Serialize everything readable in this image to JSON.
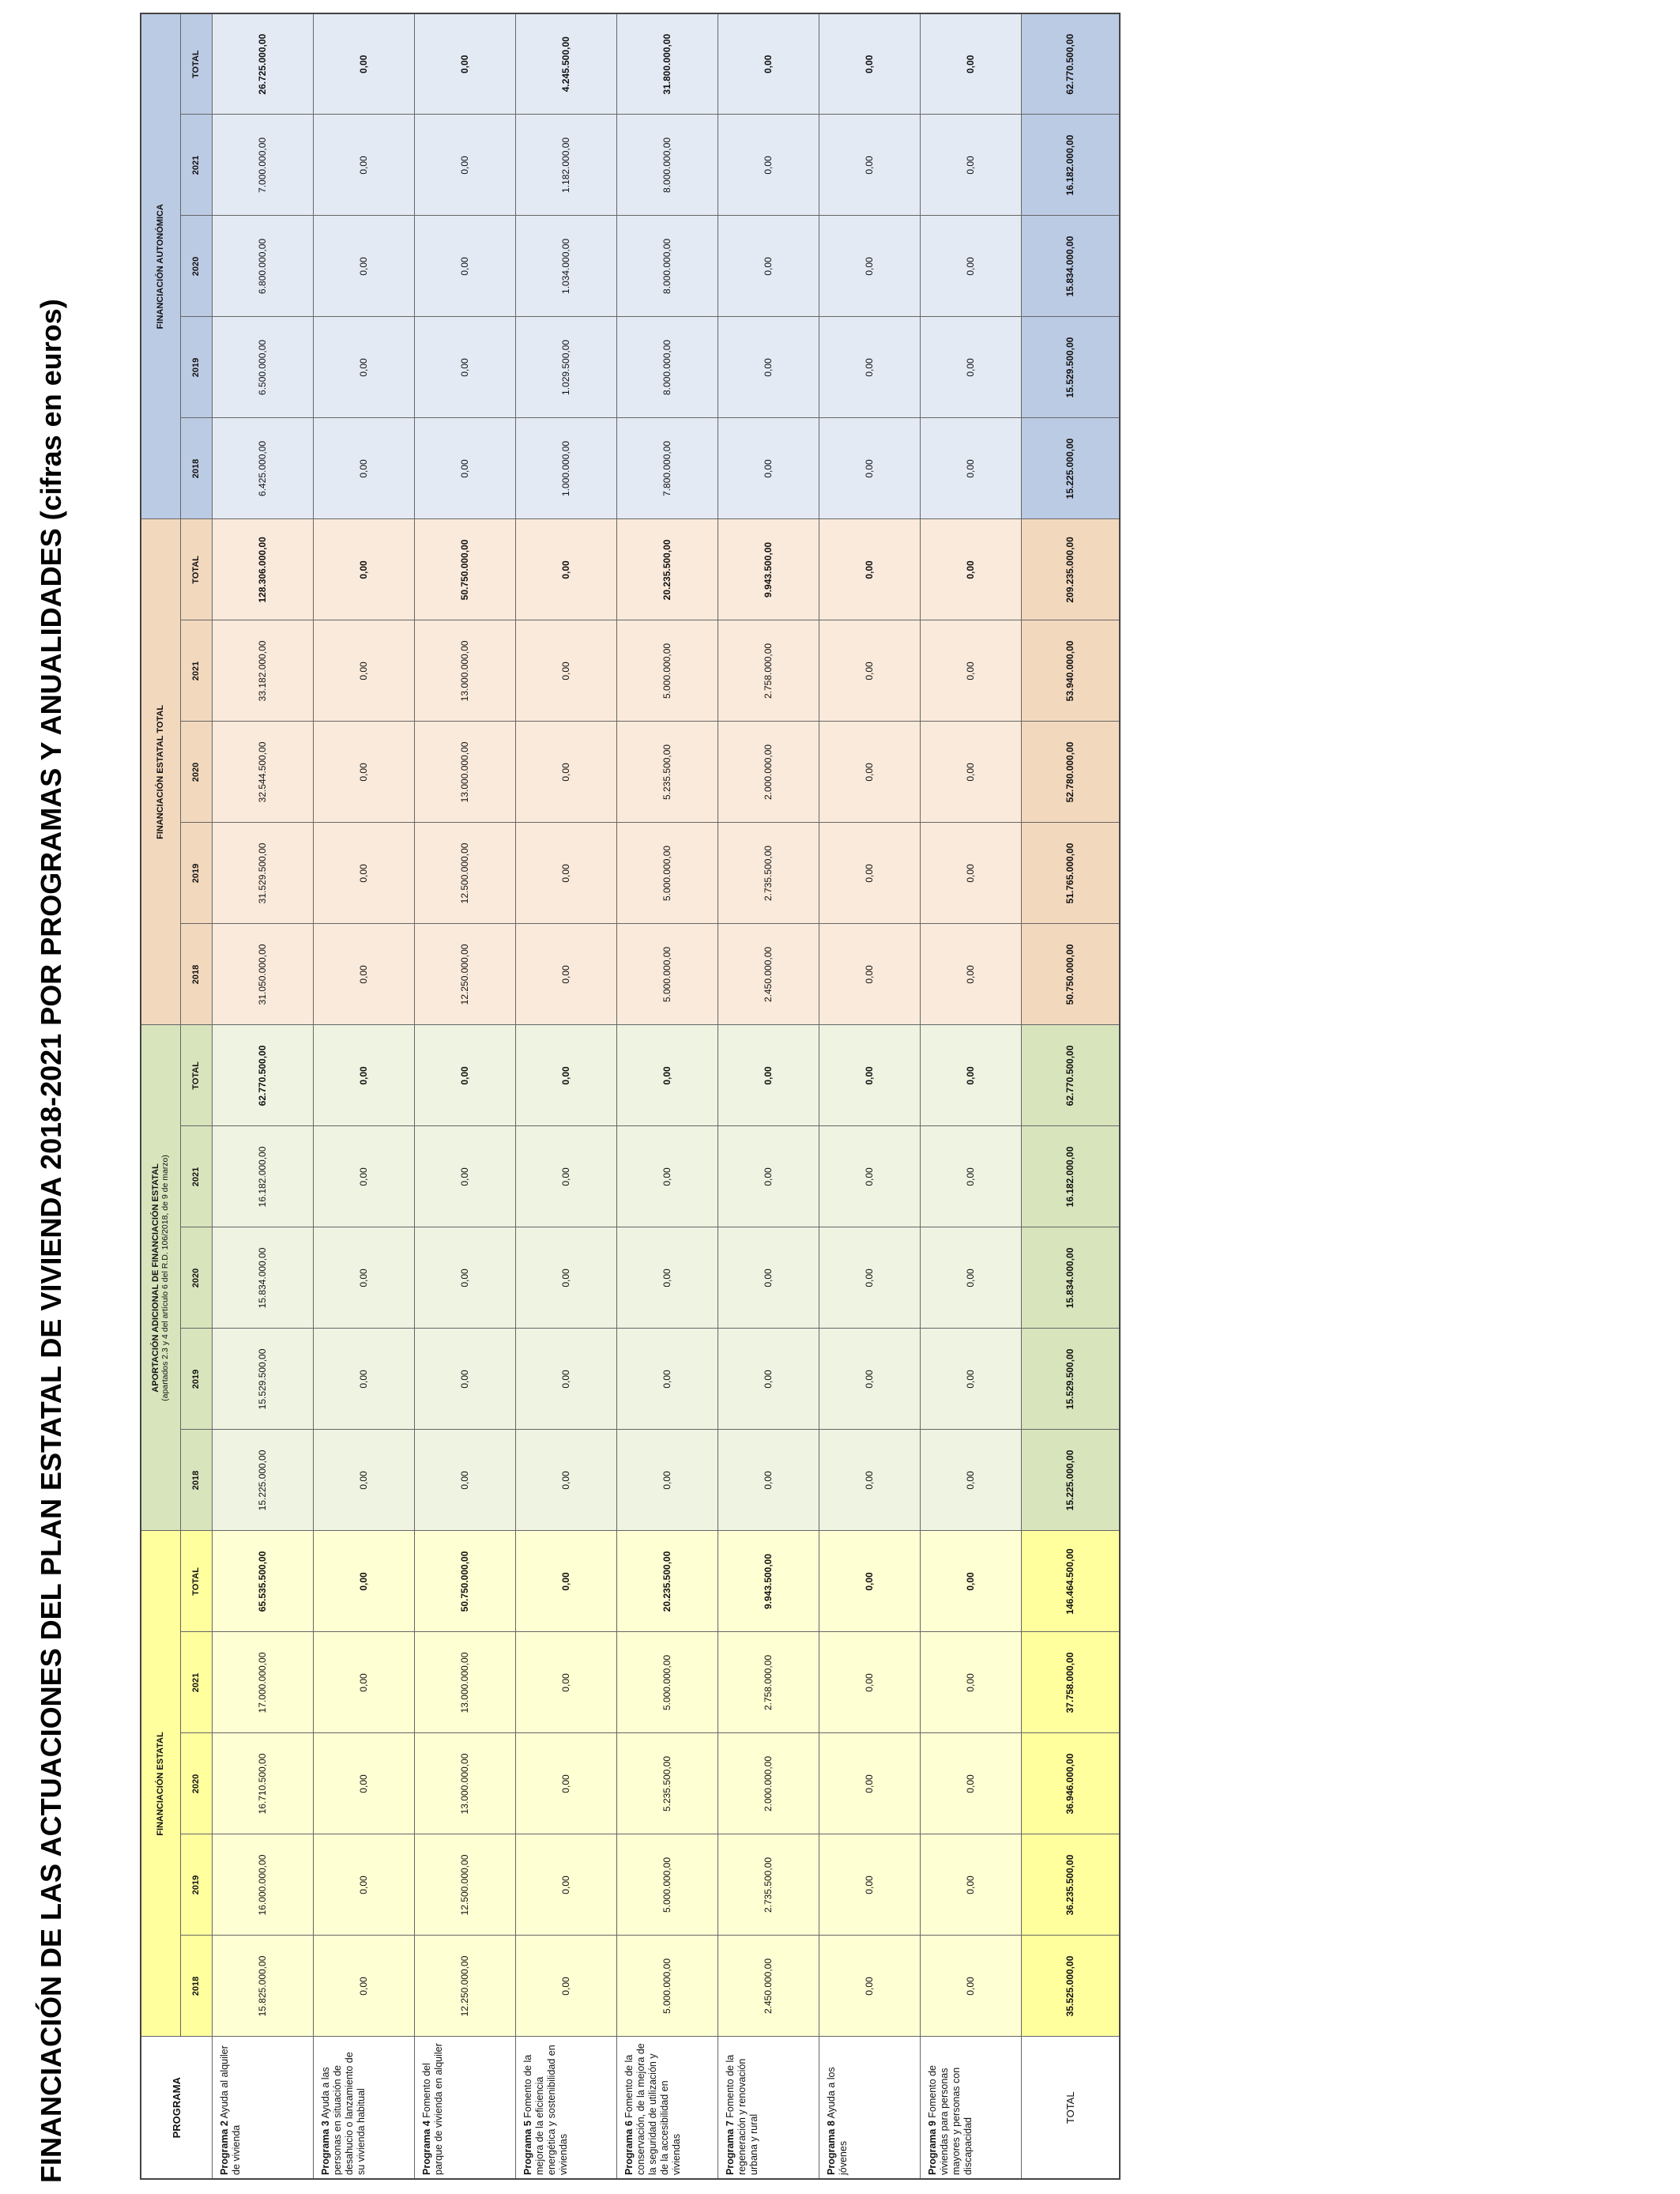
{
  "title": "FINANCIACIÓN DE LAS ACTUACIONES DEL PLAN ESTATAL DE VIVIENDA 2018-2021 POR PROGRAMAS Y ANUALIDADES (cifras en euros)",
  "table": {
    "header": "PROGRAMA",
    "groups": [
      {
        "title": "FINANCIACIÓN ESTATAL",
        "columns": [
          "2018",
          "2019",
          "2020",
          "2021",
          "TOTAL"
        ]
      },
      {
        "title": "APORTACIÓN ADICIONAL DE FINANCIACIÓN ESTATAL",
        "subtitle": "(apartados 2.3 y 4 del artículo 6 del R.D. 106/2018, de 9 de marzo)",
        "columns": [
          "2018",
          "2019",
          "2020",
          "2021",
          "TOTAL"
        ]
      },
      {
        "title": "FINANCIACIÓN ESTATAL TOTAL",
        "columns": [
          "2018",
          "2019",
          "2020",
          "2021",
          "TOTAL"
        ]
      },
      {
        "title": "FINANCIACIÓN AUTONÓMICA",
        "columns": [
          "2018",
          "2019",
          "2020",
          "2021",
          "TOTAL"
        ]
      }
    ],
    "rows": [
      {
        "program_number": "Programa 2",
        "program_name": "Ayuda al alquiler de vivienda",
        "cells": [
          "15.825.000,00",
          "16.000.000,00",
          "16.710.500,00",
          "17.000.000,00",
          "65.535.500,00",
          "15.225.000,00",
          "15.529.500,00",
          "15.834.000,00",
          "16.182.000,00",
          "62.770.500,00",
          "31.050.000,00",
          "31.529.500,00",
          "32.544.500,00",
          "33.182.000,00",
          "128.306.000,00",
          "6.425.000,00",
          "6.500.000,00",
          "6.800.000,00",
          "7.000.000,00",
          "26.725.000,00"
        ]
      },
      {
        "program_number": "Programa 3",
        "program_name": "Ayuda a las personas en situación de desahucio o lanzamiento de su vivienda habitual",
        "cells": [
          "0,00",
          "0,00",
          "0,00",
          "0,00",
          "0,00",
          "0,00",
          "0,00",
          "0,00",
          "0,00",
          "0,00",
          "0,00",
          "0,00",
          "0,00",
          "0,00",
          "0,00",
          "0,00",
          "0,00",
          "0,00",
          "0,00",
          "0,00"
        ]
      },
      {
        "program_number": "Programa 4",
        "program_name": "Fomento del parque de vivienda en alquiler",
        "cells": [
          "12.250.000,00",
          "12.500.000,00",
          "13.000.000,00",
          "13.000.000,00",
          "50.750.000,00",
          "0,00",
          "0,00",
          "0,00",
          "0,00",
          "0,00",
          "12.250.000,00",
          "12.500.000,00",
          "13.000.000,00",
          "13.000.000,00",
          "50.750.000,00",
          "0,00",
          "0,00",
          "0,00",
          "0,00",
          "0,00"
        ]
      },
      {
        "program_number": "Programa 5",
        "program_name": "Fomento de la mejora de la eficiencia energética y sostenibilidad en viviendas",
        "cells": [
          "0,00",
          "0,00",
          "0,00",
          "0,00",
          "0,00",
          "0,00",
          "0,00",
          "0,00",
          "0,00",
          "0,00",
          "0,00",
          "0,00",
          "0,00",
          "0,00",
          "0,00",
          "1.000.000,00",
          "1.029.500,00",
          "1.034.000,00",
          "1.182.000,00",
          "4.245.500,00"
        ]
      },
      {
        "program_number": "Programa 6",
        "program_name": "Fomento de la conservación, de la mejora de la seguridad de utilización y de la accesibilidad en viviendas",
        "cells": [
          "5.000.000,00",
          "5.000.000,00",
          "5.235.500,00",
          "5.000.000,00",
          "20.235.500,00",
          "0,00",
          "0,00",
          "0,00",
          "0,00",
          "0,00",
          "5.000.000,00",
          "5.000.000,00",
          "5.235.500,00",
          "5.000.000,00",
          "20.235.500,00",
          "7.800.000,00",
          "8.000.000,00",
          "8.000.000,00",
          "8.000.000,00",
          "31.800.000,00"
        ]
      },
      {
        "program_number": "Programa 7",
        "program_name": "Fomento de la regeneración y renovación urbana y rural",
        "cells": [
          "2.450.000,00",
          "2.735.500,00",
          "2.000.000,00",
          "2.758.000,00",
          "9.943.500,00",
          "0,00",
          "0,00",
          "0,00",
          "0,00",
          "0,00",
          "2.450.000,00",
          "2.735.500,00",
          "2.000.000,00",
          "2.758.000,00",
          "9.943.500,00",
          "0,00",
          "0,00",
          "0,00",
          "0,00",
          "0,00"
        ]
      },
      {
        "program_number": "Programa 8",
        "program_name": "Ayuda a los jóvenes",
        "cells": [
          "0,00",
          "0,00",
          "0,00",
          "0,00",
          "0,00",
          "0,00",
          "0,00",
          "0,00",
          "0,00",
          "0,00",
          "0,00",
          "0,00",
          "0,00",
          "0,00",
          "0,00",
          "0,00",
          "0,00",
          "0,00",
          "0,00",
          "0,00"
        ]
      },
      {
        "program_number": "Programa 9",
        "program_name": "Fomento de viviendas para personas mayores y personas con discapacidad",
        "cells": [
          "0,00",
          "0,00",
          "0,00",
          "0,00",
          "0,00",
          "0,00",
          "0,00",
          "0,00",
          "0,00",
          "0,00",
          "0,00",
          "0,00",
          "0,00",
          "0,00",
          "0,00",
          "0,00",
          "0,00",
          "0,00",
          "0,00",
          "0,00"
        ]
      }
    ],
    "total": {
      "label": "TOTAL",
      "cells": [
        "35.525.000,00",
        "36.235.500,00",
        "36.946.000,00",
        "37.758.000,00",
        "146.464.500,00",
        "15.225.000,00",
        "15.529.500,00",
        "15.834.000,00",
        "16.182.000,00",
        "62.770.500,00",
        "50.750.000,00",
        "51.765.000,00",
        "52.780.000,00",
        "53.940.000,00",
        "209.235.000,00",
        "15.225.000,00",
        "15.529.500,00",
        "15.834.000,00",
        "16.182.000,00",
        "62.770.500,00"
      ]
    }
  }
}
